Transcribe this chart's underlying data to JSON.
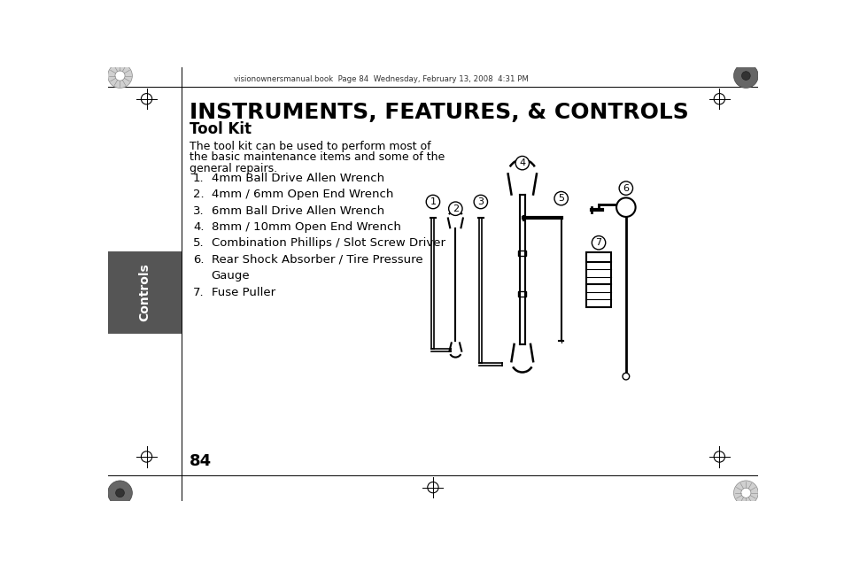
{
  "bg_color": "#ffffff",
  "title": "INSTRUMENTS, FEATURES, & CONTROLS",
  "subtitle": "Tool Kit",
  "body_text": "The tool kit can be used to perform most of\nthe basic maintenance items and some of the\ngeneral repairs.",
  "items": [
    "4mm Ball Drive Allen Wrench",
    "4mm / 6mm Open End Wrench",
    "6mm Ball Drive Allen Wrench",
    "8mm / 10mm Open End Wrench",
    "Combination Phillips / Slot Screw Driver",
    "Rear Shock Absorber / Tire Pressure\nGauge",
    "Fuse Puller"
  ],
  "sidebar_color": "#555555",
  "sidebar_text": "Controls",
  "sidebar_text_color": "#ffffff",
  "header_text": "visionownersmanual.book  Page 84  Wednesday, February 13, 2008  4:31 PM",
  "page_number": "84"
}
